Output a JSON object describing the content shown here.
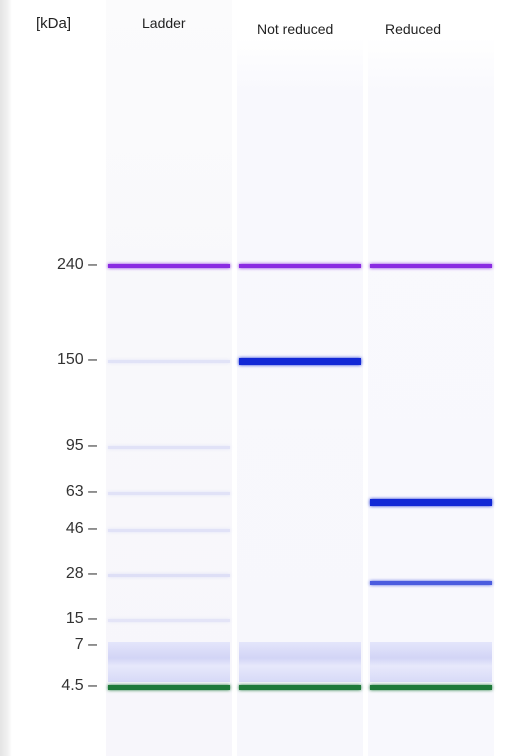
{
  "axis_title": "[kDa]",
  "lanes": [
    "Ladder",
    "Not reduced",
    "Reduced"
  ],
  "mw_markers": [
    {
      "label": "240 –",
      "kda": 240
    },
    {
      "label": "150 –",
      "kda": 150
    },
    {
      "label": "95 –",
      "kda": 95
    },
    {
      "label": "63 –",
      "kda": 63
    },
    {
      "label": "46 –",
      "kda": 46
    },
    {
      "label": "28 –",
      "kda": 28
    },
    {
      "label": "15 –",
      "kda": 15
    },
    {
      "label": "7 –",
      "kda": 7
    },
    {
      "label": "4.5 –",
      "kda": 4.5
    }
  ],
  "colors": {
    "upper_marker": "#8a2be2",
    "lower_marker": "#1e7a3a",
    "strong_band": "#1228d6",
    "faint_band": "#b9bdf0"
  },
  "bands": [
    {
      "lane": 0,
      "kda": 240,
      "intensity": 1.0,
      "color": "upper_marker"
    },
    {
      "lane": 0,
      "kda": 150,
      "intensity": 0.35,
      "color": "faint_band"
    },
    {
      "lane": 0,
      "kda": 95,
      "intensity": 0.35,
      "color": "faint_band"
    },
    {
      "lane": 0,
      "kda": 63,
      "intensity": 0.35,
      "color": "faint_band"
    },
    {
      "lane": 0,
      "kda": 46,
      "intensity": 0.35,
      "color": "faint_band"
    },
    {
      "lane": 0,
      "kda": 28,
      "intensity": 0.4,
      "color": "faint_band"
    },
    {
      "lane": 0,
      "kda": 15,
      "intensity": 0.3,
      "color": "faint_band"
    },
    {
      "lane": 0,
      "kda": 4.5,
      "intensity": 1.0,
      "color": "lower_marker"
    },
    {
      "lane": 1,
      "kda": 240,
      "intensity": 1.0,
      "color": "upper_marker"
    },
    {
      "lane": 1,
      "kda": 150,
      "intensity": 1.0,
      "color": "strong_band"
    },
    {
      "lane": 1,
      "kda": 4.5,
      "intensity": 1.0,
      "color": "lower_marker"
    },
    {
      "lane": 2,
      "kda": 240,
      "intensity": 1.0,
      "color": "upper_marker"
    },
    {
      "lane": 2,
      "kda": 58,
      "intensity": 1.0,
      "color": "strong_band"
    },
    {
      "lane": 2,
      "kda": 25,
      "intensity": 0.75,
      "color": "strong_band"
    },
    {
      "lane": 2,
      "kda": 4.5,
      "intensity": 1.0,
      "color": "lower_marker"
    }
  ]
}
